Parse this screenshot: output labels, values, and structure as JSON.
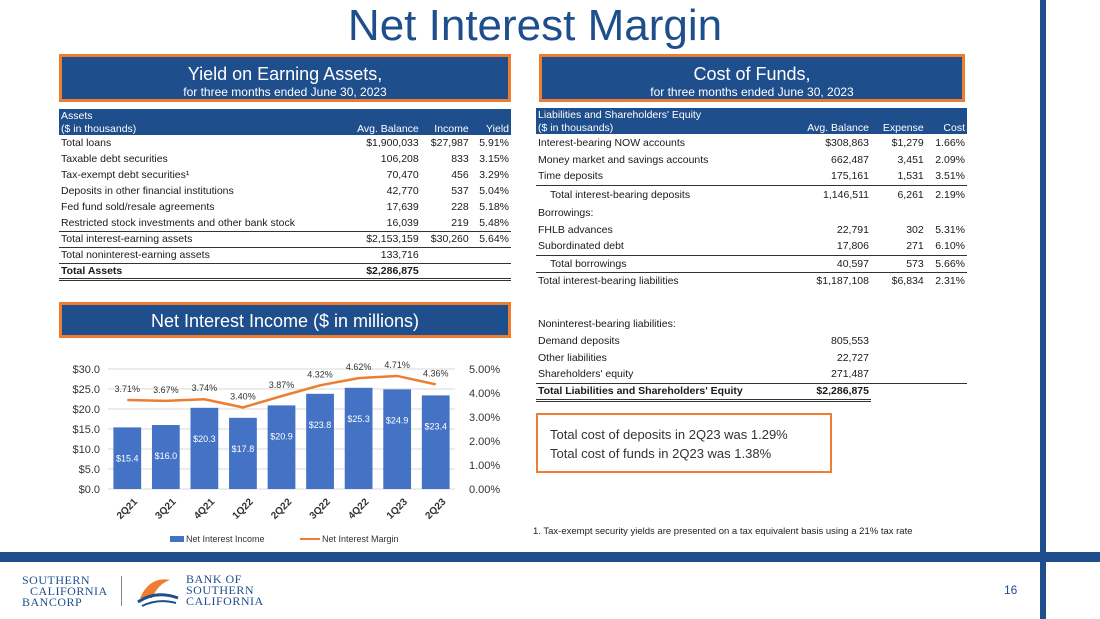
{
  "page": {
    "title": "Net Interest Margin",
    "page_number": "16",
    "footnote": "1. Tax-exempt security yields are presented on a tax equivalent basis using a 21% tax rate"
  },
  "yield_box": {
    "title": "Yield on Earning Assets,",
    "subtitle": "for three months ended June 30, 2023"
  },
  "cost_box": {
    "title": "Cost of Funds,",
    "subtitle": "for three months ended June 30, 2023"
  },
  "nii_box": {
    "title": "Net Interest Income ($ in millions)"
  },
  "assets_table": {
    "header_top": "Assets",
    "header_label": "($ in thousands)",
    "col_balance": "Avg. Balance",
    "col_income": "Income",
    "col_yield": "Yield",
    "rows": [
      {
        "label": "Total loans",
        "balance": "$1,900,033",
        "income": "$27,987",
        "yield": "5.91%"
      },
      {
        "label": "Taxable debt securities",
        "balance": "106,208",
        "income": "833",
        "yield": "3.15%"
      },
      {
        "label": "Tax-exempt debt securities¹",
        "balance": "70,470",
        "income": "456",
        "yield": "3.29%"
      },
      {
        "label": "Deposits in other financial institutions",
        "balance": "42,770",
        "income": "537",
        "yield": "5.04%"
      },
      {
        "label": "Fed fund sold/resale agreements",
        "balance": "17,639",
        "income": "228",
        "yield": "5.18%"
      },
      {
        "label": "Restricted stock investments and other bank stock",
        "balance": "16,039",
        "income": "219",
        "yield": "5.48%"
      },
      {
        "label": "Total interest-earning assets",
        "balance": "$2,153,159",
        "income": "$30,260",
        "yield": "5.64%"
      },
      {
        "label": "Total noninterest-earning assets",
        "balance": "133,716",
        "income": "",
        "yield": ""
      },
      {
        "label": "Total  Assets",
        "balance": "$2,286,875",
        "income": "",
        "yield": ""
      }
    ]
  },
  "liab_table": {
    "header_top": "Liabilities and Shareholders' Equity",
    "header_label": "($ in thousands)",
    "col_balance": "Avg. Balance",
    "col_expense": "Expense",
    "col_cost": "Cost",
    "rows": [
      {
        "label": "Interest-bearing NOW accounts",
        "balance": "$308,863",
        "expense": "$1,279",
        "cost": "1.66%"
      },
      {
        "label": "Money market and savings accounts",
        "balance": "662,487",
        "expense": "3,451",
        "cost": "2.09%"
      },
      {
        "label": "Time deposits",
        "balance": "175,161",
        "expense": "1,531",
        "cost": "3.51%"
      },
      {
        "label": "Total interest-bearing deposits",
        "balance": "1,146,511",
        "expense": "6,261",
        "cost": "2.19%"
      },
      {
        "label": "Borrowings:",
        "balance": "",
        "expense": "",
        "cost": ""
      },
      {
        "label": "FHLB advances",
        "balance": "22,791",
        "expense": "302",
        "cost": "5.31%"
      },
      {
        "label": "Subordinated debt",
        "balance": "17,806",
        "expense": "271",
        "cost": "6.10%"
      },
      {
        "label": "Total borrowings",
        "balance": "40,597",
        "expense": "573",
        "cost": "5.66%"
      },
      {
        "label": "Total interest-bearing liabilities",
        "balance": "$1,187,108",
        "expense": "$6,834",
        "cost": "2.31%"
      },
      {
        "label": "Noninterest-bearing liabilities:",
        "balance": "",
        "expense": "",
        "cost": ""
      },
      {
        "label": "Demand deposits",
        "balance": "805,553",
        "expense": "",
        "cost": ""
      },
      {
        "label": "Other liabilities",
        "balance": "22,727",
        "expense": "",
        "cost": ""
      },
      {
        "label": "Shareholders' equity",
        "balance": "271,487",
        "expense": "",
        "cost": ""
      },
      {
        "label": "Total Liabilities and Shareholders' Equity",
        "balance": "$2,286,875",
        "expense": "",
        "cost": ""
      }
    ]
  },
  "note": {
    "line1": "Total cost of deposits in 2Q23 was 1.29%",
    "line2": "Total cost of funds in 2Q23 was 1.38%"
  },
  "logos": {
    "left_line1": "SOUTHERN",
    "left_line2": "CALIFORNIA",
    "left_line3": "BANCORP",
    "right_line1": "BANK OF",
    "right_line2": "SOUTHERN",
    "right_line3": "CALIFORNIA"
  },
  "colors": {
    "brand_blue": "#1f4e8c",
    "accent_orange": "#ed7d31",
    "bar_blue": "#4472c4"
  },
  "chart_data": {
    "type": "bar",
    "categories": [
      "2Q21",
      "3Q21",
      "4Q21",
      "1Q22",
      "2Q22",
      "3Q22",
      "4Q22",
      "1Q23",
      "2Q23"
    ],
    "series": [
      {
        "name": "Net Interest Income",
        "type": "bar",
        "axis": "left",
        "values": [
          15.4,
          16.0,
          20.3,
          17.8,
          20.9,
          23.8,
          25.3,
          24.9,
          23.4
        ],
        "labels": [
          "$15.4",
          "$16.0",
          "$20.3",
          "$17.8",
          "$20.9",
          "$23.8",
          "$25.3",
          "$24.9",
          "$23.4"
        ]
      },
      {
        "name": "Net Interest Margin",
        "type": "line",
        "axis": "right",
        "values": [
          3.71,
          3.67,
          3.74,
          3.4,
          3.87,
          4.32,
          4.62,
          4.71,
          4.36
        ],
        "labels": [
          "3.71%",
          "3.67%",
          "3.74%",
          "3.40%",
          "3.87%",
          "4.32%",
          "4.62%",
          "4.71%",
          "4.36%"
        ]
      }
    ],
    "y_left": {
      "min": 0,
      "max": 30,
      "ticks": [
        "$0.0",
        "$5.0",
        "$10.0",
        "$15.0",
        "$20.0",
        "$25.0",
        "$30.0"
      ]
    },
    "y_right": {
      "min": 0,
      "max": 5,
      "ticks": [
        "0.00%",
        "1.00%",
        "2.00%",
        "3.00%",
        "4.00%",
        "5.00%"
      ]
    },
    "grid": true,
    "legend": "bottom"
  }
}
